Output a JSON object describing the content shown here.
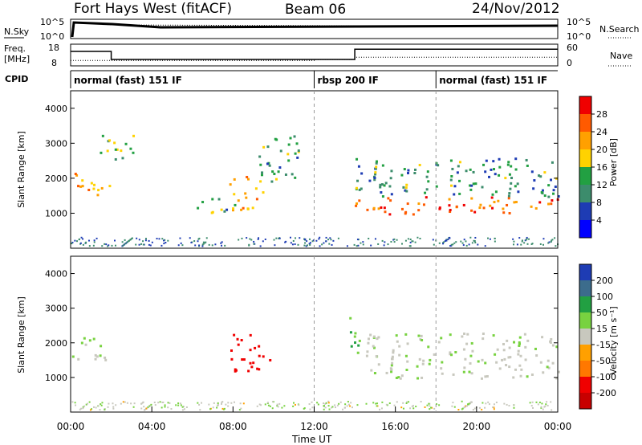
{
  "header": {
    "title": "Fort Hays West (fitACF)",
    "beam": "Beam 06",
    "date": "24/Nov/2012"
  },
  "noise_panel": {
    "left_label": "N.Sky",
    "right_label": "N.Search",
    "left_ticks": [
      "10^5",
      "10^0"
    ],
    "right_ticks": [
      "10^5",
      "10^0"
    ]
  },
  "freq_panel": {
    "left_label_line1": "Freq.",
    "left_label_line2": "[MHz]",
    "right_label": "Nave",
    "left_ticks": [
      "18",
      "8"
    ],
    "right_ticks": [
      "60",
      "0"
    ],
    "freq_mhz": [
      [
        0,
        15.3
      ],
      [
        2,
        10.7
      ],
      [
        14,
        16.5
      ],
      [
        24,
        16.5
      ]
    ],
    "nave": [
      [
        0,
        13
      ],
      [
        2,
        13
      ],
      [
        12,
        16
      ],
      [
        14,
        24
      ],
      [
        24,
        24
      ]
    ]
  },
  "cpid_panel": {
    "label": "CPID",
    "segments": [
      {
        "start": 0,
        "end": 12,
        "text": "normal (fast) 151 IF"
      },
      {
        "start": 12,
        "end": 18,
        "text": "rbsp 200 IF"
      },
      {
        "start": 18,
        "end": 24,
        "text": "normal (fast) 151 IF"
      }
    ]
  },
  "power_panel": {
    "ylabel": "Slant Range [km]",
    "colorbar_label": "Power [dB]",
    "colorbar_ticks": [
      "28",
      "24",
      "20",
      "16",
      "12",
      "8",
      "4"
    ],
    "colors": [
      "#f00000",
      "#ff5a00",
      "#ffa000",
      "#ffd200",
      "#22a042",
      "#3c8c6c",
      "#1e3cb4",
      "#0000ff"
    ]
  },
  "velocity_panel": {
    "ylabel": "Slant Range [km]",
    "colorbar_label": "Velocity [m s⁻¹]",
    "colorbar_ticks": [
      "200",
      "100",
      "50",
      "15",
      "-15",
      "-50",
      "-100",
      "-200"
    ],
    "colors": [
      "#1e3cb4",
      "#3c6c8c",
      "#22a042",
      "#78d240",
      "#c8c8be",
      "#ffa000",
      "#ff7800",
      "#f00000",
      "#c80000"
    ]
  },
  "x_axis": {
    "label": "Time UT",
    "ticks": [
      "00:00",
      "04:00",
      "08:00",
      "12:00",
      "16:00",
      "20:00",
      "00:00"
    ]
  },
  "chart_data": {
    "type": "heatmap",
    "xlabel": "Time UT",
    "ylabel": "Slant Range [km]",
    "xlim": [
      0,
      24
    ],
    "ylim": [
      0,
      4500
    ],
    "y_ticks": [
      1000,
      2000,
      3000,
      4000
    ],
    "power_scale_db": [
      0,
      30
    ],
    "velocity_scale_ms": [
      -250,
      250
    ],
    "power_echo_regions": [
      {
        "t": [
          0.1,
          1.9
        ],
        "r": [
          1500,
          2200
        ],
        "db": 22
      },
      {
        "t": [
          1.4,
          3.1
        ],
        "r": [
          2500,
          3300
        ],
        "db": 14
      },
      {
        "t": [
          6.2,
          7.8
        ],
        "r": [
          1000,
          1500
        ],
        "db": 12
      },
      {
        "t": [
          7.8,
          9.6
        ],
        "r": [
          1100,
          2100
        ],
        "db": 20
      },
      {
        "t": [
          9.2,
          11.2
        ],
        "r": [
          1900,
          3300
        ],
        "db": 12
      },
      {
        "t": [
          14.0,
          24.0
        ],
        "r": [
          1000,
          1500
        ],
        "db": 26
      },
      {
        "t": [
          14.0,
          24.0
        ],
        "r": [
          1500,
          2600
        ],
        "db": 10
      }
    ],
    "velocity_echo_regions": [
      {
        "t": [
          0.0,
          1.8
        ],
        "r": [
          1500,
          2200
        ],
        "v": 0
      },
      {
        "t": [
          7.8,
          9.8
        ],
        "r": [
          1200,
          2300
        ],
        "v": -200
      },
      {
        "t": [
          14.5,
          24.0
        ],
        "r": [
          1000,
          2300
        ],
        "v": 0
      },
      {
        "t": [
          13.7,
          14.2
        ],
        "r": [
          1200,
          2800
        ],
        "v": 30
      }
    ]
  }
}
